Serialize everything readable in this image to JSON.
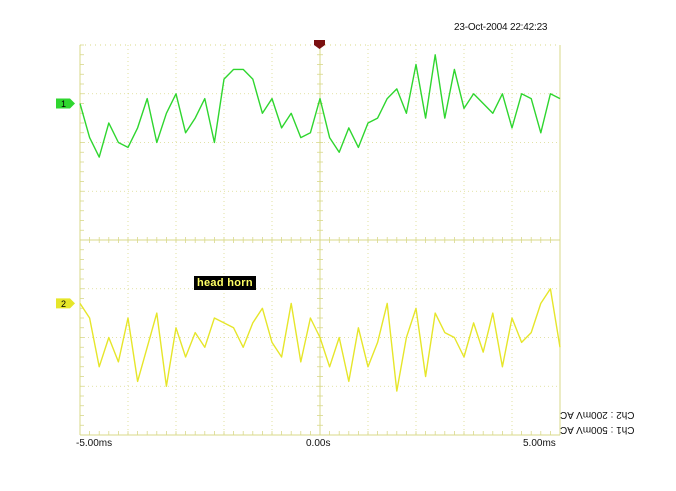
{
  "timestamp": "23-Oct-2004 22:42:23",
  "annotation": "head horn",
  "colors": {
    "ch1": "#2fd62f",
    "ch2": "#e6e62a",
    "grid": "#d9d98a",
    "trigger": "#7a1010",
    "background": "#ffffff"
  },
  "channels": [
    {
      "marker": "1",
      "settings": "Ch1 : 500mV AC"
    },
    {
      "marker": "2",
      "settings": "Ch2 : 200mV AC"
    }
  ],
  "chart_data": {
    "type": "line",
    "title": "",
    "xlabel": "",
    "ylabel": "",
    "x_ticks": [
      "-5.00ms",
      "0.00s",
      "5.00ms"
    ],
    "xlim": [
      -5.0,
      5.0
    ],
    "x_unit": "ms",
    "y_divisions": 8,
    "x_divisions": 10,
    "grid": true,
    "series": [
      {
        "name": "1",
        "y_unit": "div",
        "x": [
          -5.0,
          -4.8,
          -4.6,
          -4.4,
          -4.2,
          -4.0,
          -3.8,
          -3.6,
          -3.4,
          -3.2,
          -3.0,
          -2.8,
          -2.6,
          -2.4,
          -2.2,
          -2.0,
          -1.8,
          -1.6,
          -1.4,
          -1.2,
          -1.0,
          -0.8,
          -0.6,
          -0.4,
          -0.2,
          0.0,
          0.2,
          0.4,
          0.6,
          0.8,
          1.0,
          1.2,
          1.4,
          1.6,
          1.8,
          2.0,
          2.2,
          2.4,
          2.6,
          2.8,
          3.0,
          3.2,
          3.4,
          3.6,
          3.8,
          4.0,
          4.2,
          4.4,
          4.6,
          4.8,
          5.0
        ],
        "values": [
          2.8,
          2.1,
          1.7,
          2.4,
          2.0,
          1.9,
          2.3,
          2.9,
          2.0,
          2.6,
          3.0,
          2.2,
          2.5,
          2.9,
          2.0,
          3.3,
          3.5,
          3.5,
          3.3,
          2.6,
          2.9,
          2.3,
          2.6,
          2.1,
          2.2,
          2.9,
          2.1,
          1.8,
          2.3,
          1.9,
          2.4,
          2.5,
          2.9,
          3.1,
          2.6,
          3.6,
          2.5,
          3.8,
          2.5,
          3.5,
          2.7,
          3.0,
          2.8,
          2.6,
          3.0,
          2.3,
          3.0,
          2.9,
          2.2,
          3.0,
          2.9
        ]
      },
      {
        "name": "2",
        "y_unit": "div",
        "x": [
          -5.0,
          -4.8,
          -4.6,
          -4.4,
          -4.2,
          -4.0,
          -3.8,
          -3.6,
          -3.4,
          -3.2,
          -3.0,
          -2.8,
          -2.6,
          -2.4,
          -2.2,
          -2.0,
          -1.8,
          -1.6,
          -1.4,
          -1.2,
          -1.0,
          -0.8,
          -0.6,
          -0.4,
          -0.2,
          0.0,
          0.2,
          0.4,
          0.6,
          0.8,
          1.0,
          1.2,
          1.4,
          1.6,
          1.8,
          2.0,
          2.2,
          2.4,
          2.6,
          2.8,
          3.0,
          3.2,
          3.4,
          3.6,
          3.8,
          4.0,
          4.2,
          4.4,
          4.6,
          4.8,
          5.0
        ],
        "values": [
          -1.3,
          -1.6,
          -2.6,
          -2.0,
          -2.5,
          -1.6,
          -2.9,
          -2.2,
          -1.5,
          -3.0,
          -1.8,
          -2.4,
          -1.9,
          -2.2,
          -1.6,
          -1.7,
          -1.8,
          -2.2,
          -1.7,
          -1.4,
          -2.1,
          -2.4,
          -1.3,
          -2.5,
          -1.6,
          -2.0,
          -2.6,
          -2.0,
          -2.9,
          -1.8,
          -2.6,
          -2.1,
          -1.3,
          -3.1,
          -2.0,
          -1.4,
          -2.8,
          -1.5,
          -1.9,
          -2.0,
          -2.4,
          -1.7,
          -2.3,
          -1.5,
          -2.6,
          -1.6,
          -2.1,
          -1.9,
          -1.3,
          -1.0,
          -2.2
        ]
      }
    ]
  }
}
